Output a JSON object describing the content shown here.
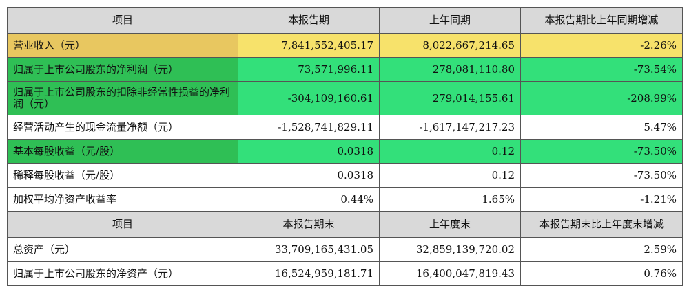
{
  "header1": [
    "项目",
    "本报告期",
    "上年同期",
    "本报告期比上年同期增减"
  ],
  "rows1": [
    {
      "label": "营业收入（元）",
      "current": "7,841,552,405.17",
      "prior": "8,022,667,214.65",
      "change": "-2.26%",
      "highlight": "yellow"
    },
    {
      "label": "归属于上市公司股东的净利润（元）",
      "current": "73,571,996.11",
      "prior": "278,081,110.80",
      "change": "-73.54%",
      "highlight": "green"
    },
    {
      "label": "归属于上市公司股东的扣除非经常性损益的净利润（元）",
      "current": "-304,109,160.61",
      "prior": "279,014,155.61",
      "change": "-208.99%",
      "highlight": "green"
    },
    {
      "label": "经营活动产生的现金流量净额（元）",
      "current": "-1,528,741,829.11",
      "prior": "-1,617,147,217.23",
      "change": "5.47%",
      "highlight": "none"
    },
    {
      "label": "基本每股收益（元/股）",
      "current": "0.0318",
      "prior": "0.12",
      "change": "-73.50%",
      "highlight": "green"
    },
    {
      "label": "稀释每股收益（元/股）",
      "current": "0.0318",
      "prior": "0.12",
      "change": "-73.50%",
      "highlight": "none"
    },
    {
      "label": "加权平均净资产收益率",
      "current": "0.44%",
      "prior": "1.65%",
      "change": "-1.21%",
      "highlight": "none"
    }
  ],
  "header2": [
    "项目",
    "本报告期末",
    "上年度末",
    "本报告期末比上年度末增减"
  ],
  "rows2": [
    {
      "label": "总资产（元）",
      "current": "33,709,165,431.05",
      "prior": "32,859,139,720.02",
      "change": "2.59%"
    },
    {
      "label": "归属于上市公司股东的净资产（元）",
      "current": "16,524,959,181.71",
      "prior": "16,400,047,819.43",
      "change": "0.76%"
    }
  ],
  "colors": {
    "header_bg": "#d9d9d9",
    "highlight_yellow": "#f7e26b",
    "highlight_green": "#33e07a"
  }
}
